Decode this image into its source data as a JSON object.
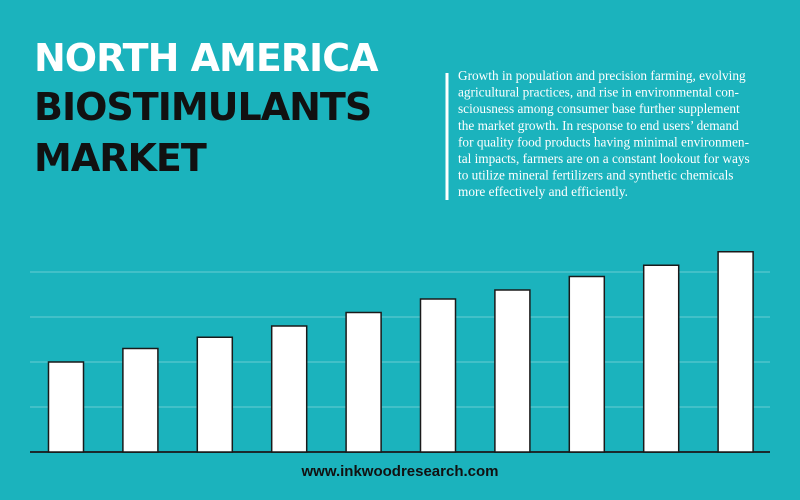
{
  "header": {
    "title_lines": [
      "NORTH AMERICA",
      "BIOSTIMULANTS",
      "MARKET"
    ],
    "description_lines": [
      "Growth in population and precision farming, evolving",
      "agricultural practices, and rise in environmental con-",
      "sciousness among consumer base further supplement",
      "the market growth. In response to end users’ demand",
      "for quality food products having minimal environmen-",
      "tal impacts, farmers are on a constant lookout for ways",
      "to utilize mineral fertilizers and synthetic chemicals",
      "more effectively and efficiently."
    ]
  },
  "footer": "www.inkwoodresearch.com",
  "chart_data": {
    "type": "bar",
    "categories": [
      null,
      null,
      null,
      null,
      null,
      null,
      null,
      null,
      null,
      null
    ],
    "values": [
      2.0,
      2.3,
      2.55,
      2.8,
      3.1,
      3.4,
      3.6,
      3.9,
      4.15,
      4.45
    ],
    "color": "#ffffff",
    "ylim": [
      0,
      5
    ],
    "yticks": [
      0,
      1,
      2,
      3,
      4
    ],
    "grid": true
  }
}
